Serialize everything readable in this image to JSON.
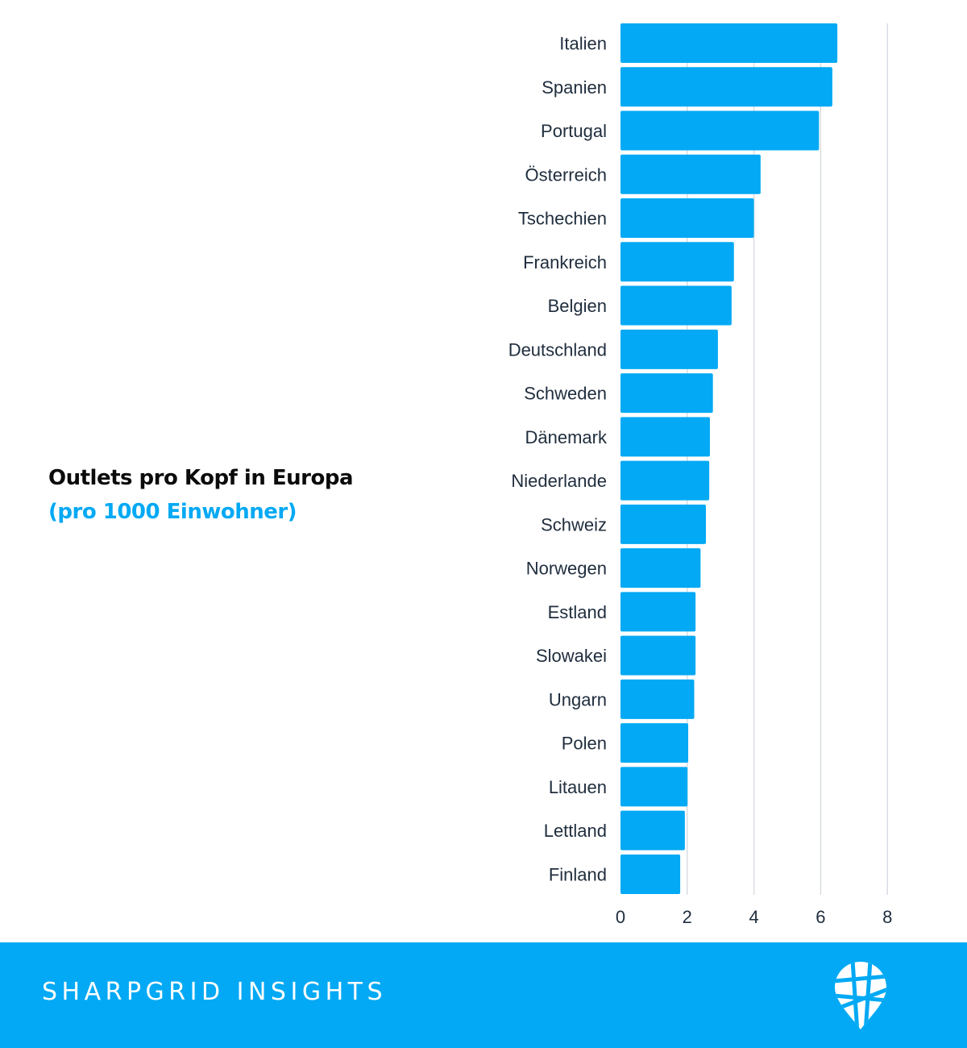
{
  "title": {
    "line1": "Outlets pro Kopf in Europa",
    "line2": "(pro 1000 Einwohner)"
  },
  "chart_data": {
    "type": "bar",
    "orientation": "horizontal",
    "categories": [
      "Italien",
      "Spanien",
      "Portugal",
      "Österreich",
      "Tschechien",
      "Frankreich",
      "Belgien",
      "Deutschland",
      "Schweden",
      "Dänemark",
      "Niederlande",
      "Schweiz",
      "Norwegen",
      "Estland",
      "Slowakei",
      "Ungarn",
      "Polen",
      "Litauen",
      "Lettland",
      "Finland"
    ],
    "values": [
      6.5,
      6.35,
      5.95,
      4.2,
      4.0,
      3.4,
      3.33,
      2.92,
      2.77,
      2.68,
      2.66,
      2.56,
      2.4,
      2.25,
      2.25,
      2.21,
      2.03,
      2.01,
      1.93,
      1.79
    ],
    "xticks": [
      0,
      2,
      4,
      6,
      8
    ],
    "xlim": [
      0,
      8
    ],
    "grid": "vertical",
    "bar_color": "#03a9f4",
    "title": "Outlets pro Kopf in Europa (pro 1000 Einwohner)"
  },
  "footer": {
    "brand": "SHARPGRID INSIGHTS",
    "logo_icon": "map-pin-grid-icon",
    "background": "#03a9f4"
  }
}
